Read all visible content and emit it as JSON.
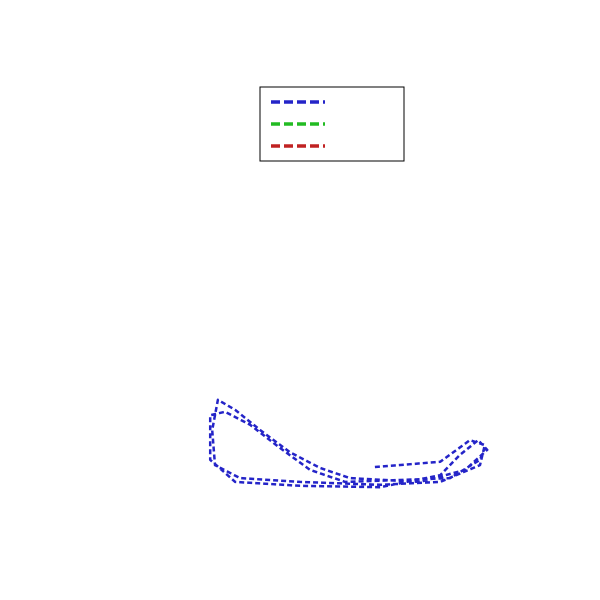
{
  "chart_data": {
    "type": "line",
    "legend": "upper center",
    "xlim": [
      0,
      10
    ],
    "ylim": [
      0,
      10
    ],
    "series": [
      {
        "color": "#2424c8",
        "x": [
          6.56,
          7.92,
          8.54,
          8.85,
          8.75,
          7.92,
          6.67,
          5.0,
          3.75,
          3.23,
          3.17,
          3.29,
          3.65,
          4.17,
          4.79,
          5.42,
          6.04,
          7.5,
          8.44,
          8.9,
          8.71,
          8.33,
          7.92,
          6.67,
          5.0,
          3.65,
          3.13,
          3.13,
          3.44,
          3.96,
          4.58,
          5.21,
          5.94,
          7.08,
          8.13,
          8.75,
          8.85
        ],
        "y": [
          1.52,
          1.63,
          2.08,
          1.98,
          1.56,
          1.21,
          1.15,
          1.21,
          1.29,
          1.56,
          2.29,
          2.92,
          2.71,
          2.29,
          1.83,
          1.5,
          1.29,
          1.21,
          1.46,
          1.88,
          2.08,
          1.77,
          1.35,
          1.1,
          1.13,
          1.21,
          1.67,
          2.6,
          2.67,
          2.4,
          1.92,
          1.46,
          1.21,
          1.25,
          1.29,
          1.67,
          1.92
        ]
      },
      {
        "color": "#22bb22",
        "x": [],
        "y": []
      },
      {
        "color": "#c02222",
        "x": [],
        "y": []
      }
    ]
  }
}
